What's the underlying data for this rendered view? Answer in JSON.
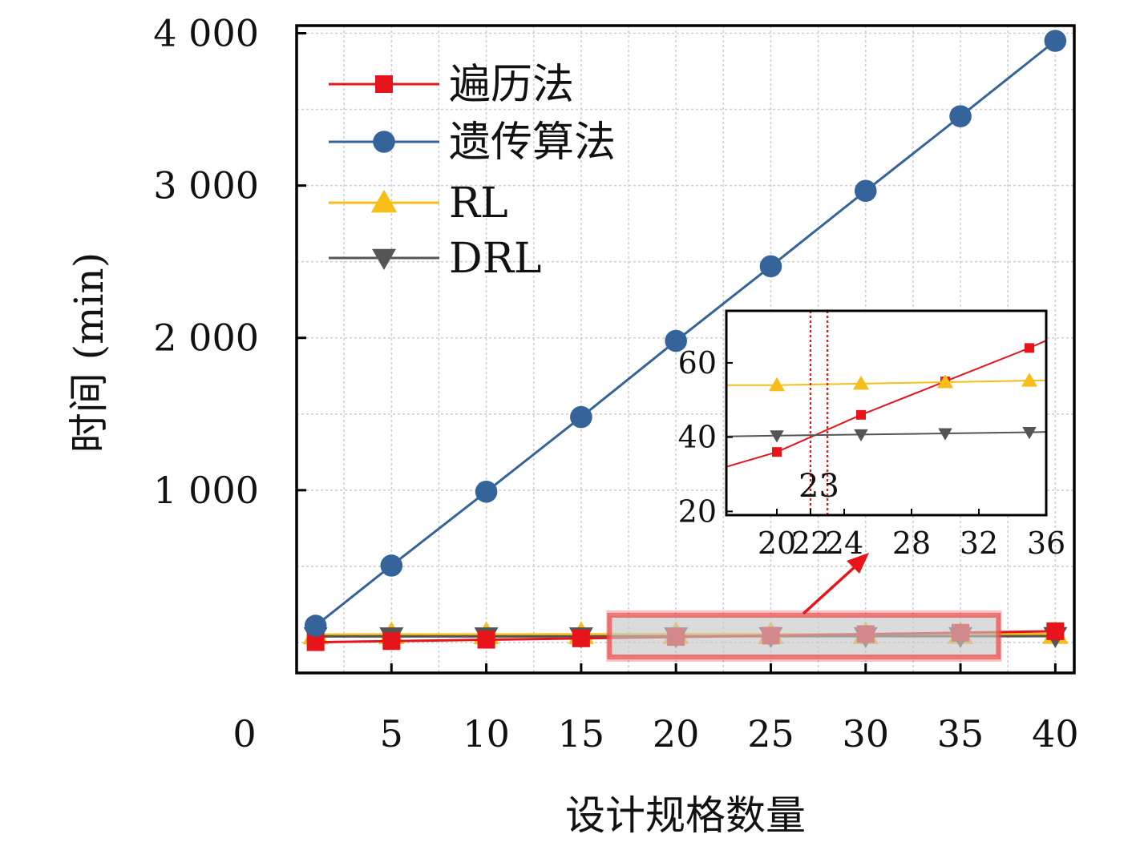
{
  "chart_data": [
    {
      "type": "line",
      "xlabel": "设计规格数量",
      "ylabel": "时间 (min)",
      "xlim": [
        0,
        41
      ],
      "ylim": [
        -200,
        4050
      ],
      "x_ticks": [
        5,
        10,
        15,
        20,
        25,
        30,
        35,
        40
      ],
      "x_tick_labels": [
        "5",
        "10",
        "15",
        "20",
        "25",
        "30",
        "35",
        "40"
      ],
      "x_zero_label": "0",
      "y_ticks": [
        1000,
        2000,
        3000,
        4000
      ],
      "y_tick_labels": [
        "1 000",
        "2 000",
        "3 000",
        "4 000"
      ],
      "grid": true,
      "legend_position": "top-left",
      "x": [
        1,
        5,
        10,
        15,
        20,
        25,
        30,
        35,
        40
      ],
      "series": [
        {
          "name": "遍历法",
          "color": "#e8141b",
          "marker": "square",
          "values": [
            2,
            9,
            18,
            27,
            36,
            45,
            55,
            64,
            74
          ]
        },
        {
          "name": "遗传算法",
          "color": "#34649a",
          "marker": "circle",
          "values": [
            110,
            505,
            990,
            1480,
            1980,
            2470,
            2965,
            3455,
            3950
          ]
        },
        {
          "name": "RL",
          "color": "#f7bd18",
          "marker": "triangle-up",
          "values": [
            52,
            53,
            53,
            54,
            54,
            54,
            54,
            55,
            55
          ]
        },
        {
          "name": "DRL",
          "color": "#555555",
          "marker": "triangle-down",
          "values": [
            40,
            40,
            40,
            40,
            40,
            41,
            41,
            41,
            42
          ]
        }
      ],
      "highlight_range_x": [
        16.5,
        37
      ]
    },
    {
      "type": "line",
      "role": "inset",
      "xlim": [
        17,
        36
      ],
      "ylim": [
        19,
        74
      ],
      "x_ticks": [
        20,
        22,
        24,
        28,
        32,
        36
      ],
      "x_tick_labels": [
        "20",
        "22",
        "24",
        "28",
        "32",
        "36"
      ],
      "y_ticks": [
        20,
        40,
        60
      ],
      "y_tick_labels": [
        "20",
        "40",
        "60"
      ],
      "x": [
        17,
        20,
        25,
        30,
        35,
        36
      ],
      "series": [
        {
          "name": "遍历法",
          "color": "#e8141b",
          "marker": "square",
          "values": [
            32,
            36,
            46,
            55,
            64,
            66
          ],
          "marker_x": [
            20,
            25,
            30,
            35
          ]
        },
        {
          "name": "RL",
          "color": "#f7bd18",
          "marker": "triangle-up",
          "values": [
            54,
            54,
            54.4,
            54.8,
            55.2,
            55.3
          ],
          "marker_x": [
            20,
            25,
            30,
            35
          ]
        },
        {
          "name": "DRL",
          "color": "#555555",
          "marker": "triangle-down",
          "values": [
            40.2,
            40.4,
            40.7,
            41,
            41.3,
            41.4
          ],
          "marker_x": [
            20,
            25,
            30,
            35
          ]
        }
      ],
      "vlines": [
        22,
        23
      ],
      "annotation": "23"
    }
  ]
}
